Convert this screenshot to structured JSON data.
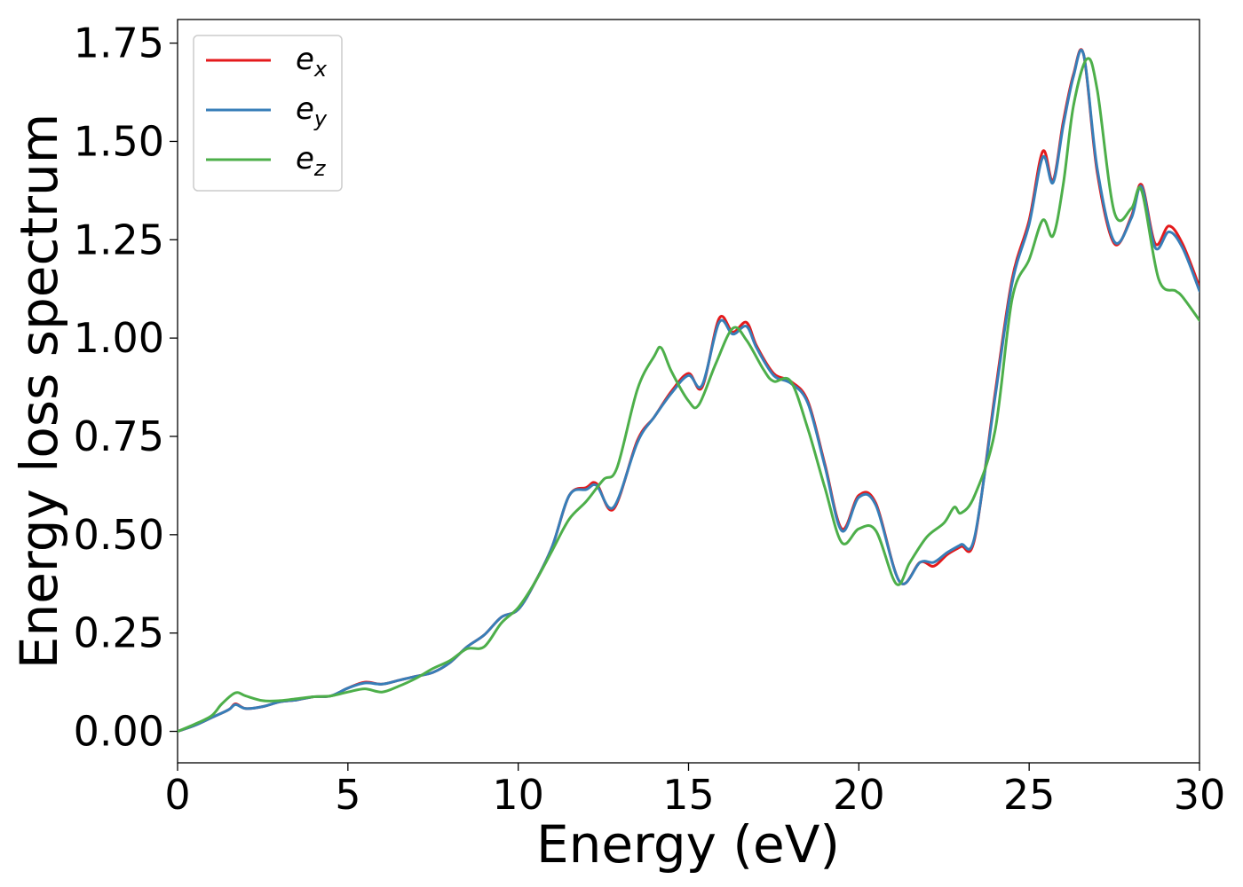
{
  "chart_data": {
    "type": "line",
    "xlabel": "Energy (eV)",
    "ylabel": "Energy loss spectrum",
    "xlim": [
      0,
      30
    ],
    "ylim": [
      -0.08,
      1.81
    ],
    "x_ticks": [
      0,
      5,
      10,
      15,
      20,
      25,
      30
    ],
    "x_tick_labels": [
      "0",
      "5",
      "10",
      "15",
      "20",
      "25",
      "30"
    ],
    "y_ticks": [
      0,
      0.25,
      0.5,
      0.75,
      1.0,
      1.25,
      1.5,
      1.75
    ],
    "y_tick_labels": [
      "0.00",
      "0.25",
      "0.50",
      "0.75",
      "1.00",
      "1.25",
      "1.50",
      "1.75"
    ],
    "grid": false,
    "legend_position": "top-left",
    "series": [
      {
        "name": "e",
        "subscript": "x",
        "color": "#e41a1c",
        "points": [
          [
            0,
            0.0
          ],
          [
            0.5,
            0.015
          ],
          [
            1,
            0.035
          ],
          [
            1.5,
            0.055
          ],
          [
            1.7,
            0.07
          ],
          [
            2,
            0.058
          ],
          [
            2.5,
            0.063
          ],
          [
            3,
            0.075
          ],
          [
            3.5,
            0.08
          ],
          [
            4,
            0.088
          ],
          [
            4.5,
            0.09
          ],
          [
            5,
            0.11
          ],
          [
            5.5,
            0.125
          ],
          [
            6,
            0.12
          ],
          [
            6.5,
            0.13
          ],
          [
            7,
            0.14
          ],
          [
            7.5,
            0.15
          ],
          [
            8,
            0.175
          ],
          [
            8.5,
            0.215
          ],
          [
            9,
            0.245
          ],
          [
            9.5,
            0.29
          ],
          [
            10,
            0.31
          ],
          [
            10.5,
            0.38
          ],
          [
            11,
            0.47
          ],
          [
            11.5,
            0.6
          ],
          [
            12,
            0.62
          ],
          [
            12.3,
            0.63
          ],
          [
            12.8,
            0.565
          ],
          [
            13.5,
            0.74
          ],
          [
            14,
            0.8
          ],
          [
            14.5,
            0.865
          ],
          [
            15,
            0.91
          ],
          [
            15.4,
            0.875
          ],
          [
            15.9,
            1.05
          ],
          [
            16.3,
            1.015
          ],
          [
            16.7,
            1.04
          ],
          [
            17,
            0.98
          ],
          [
            17.5,
            0.91
          ],
          [
            18,
            0.89
          ],
          [
            18.5,
            0.84
          ],
          [
            19,
            0.68
          ],
          [
            19.5,
            0.515
          ],
          [
            20,
            0.6
          ],
          [
            20.5,
            0.58
          ],
          [
            21.2,
            0.38
          ],
          [
            21.8,
            0.43
          ],
          [
            22.2,
            0.42
          ],
          [
            22.6,
            0.45
          ],
          [
            23,
            0.47
          ],
          [
            23.4,
            0.49
          ],
          [
            24,
            0.86
          ],
          [
            24.5,
            1.15
          ],
          [
            25,
            1.3
          ],
          [
            25.4,
            1.475
          ],
          [
            25.7,
            1.4
          ],
          [
            26,
            1.55
          ],
          [
            26.3,
            1.67
          ],
          [
            26.6,
            1.72
          ],
          [
            27,
            1.42
          ],
          [
            27.5,
            1.24
          ],
          [
            28,
            1.31
          ],
          [
            28.3,
            1.39
          ],
          [
            28.7,
            1.24
          ],
          [
            29.1,
            1.285
          ],
          [
            29.5,
            1.24
          ],
          [
            30,
            1.13
          ]
        ]
      },
      {
        "name": "e",
        "subscript": "y",
        "color": "#377eb8",
        "points": [
          [
            0,
            0.0
          ],
          [
            0.5,
            0.015
          ],
          [
            1,
            0.035
          ],
          [
            1.5,
            0.055
          ],
          [
            1.7,
            0.068
          ],
          [
            2,
            0.058
          ],
          [
            2.5,
            0.063
          ],
          [
            3,
            0.075
          ],
          [
            3.5,
            0.08
          ],
          [
            4,
            0.088
          ],
          [
            4.5,
            0.09
          ],
          [
            5,
            0.11
          ],
          [
            5.5,
            0.123
          ],
          [
            6,
            0.12
          ],
          [
            6.5,
            0.13
          ],
          [
            7,
            0.14
          ],
          [
            7.5,
            0.15
          ],
          [
            8,
            0.175
          ],
          [
            8.5,
            0.215
          ],
          [
            9,
            0.245
          ],
          [
            9.5,
            0.29
          ],
          [
            10,
            0.31
          ],
          [
            10.5,
            0.38
          ],
          [
            11,
            0.47
          ],
          [
            11.5,
            0.6
          ],
          [
            12,
            0.615
          ],
          [
            12.3,
            0.625
          ],
          [
            12.8,
            0.57
          ],
          [
            13.5,
            0.735
          ],
          [
            14,
            0.8
          ],
          [
            14.5,
            0.86
          ],
          [
            15,
            0.905
          ],
          [
            15.4,
            0.88
          ],
          [
            15.9,
            1.04
          ],
          [
            16.3,
            1.01
          ],
          [
            16.7,
            1.03
          ],
          [
            17,
            0.975
          ],
          [
            17.5,
            0.905
          ],
          [
            18,
            0.885
          ],
          [
            18.5,
            0.835
          ],
          [
            19,
            0.675
          ],
          [
            19.5,
            0.51
          ],
          [
            20,
            0.595
          ],
          [
            20.5,
            0.575
          ],
          [
            21.2,
            0.38
          ],
          [
            21.8,
            0.43
          ],
          [
            22.2,
            0.43
          ],
          [
            22.6,
            0.455
          ],
          [
            23,
            0.475
          ],
          [
            23.4,
            0.495
          ],
          [
            24,
            0.85
          ],
          [
            24.5,
            1.14
          ],
          [
            25,
            1.29
          ],
          [
            25.4,
            1.46
          ],
          [
            25.7,
            1.395
          ],
          [
            26,
            1.54
          ],
          [
            26.3,
            1.665
          ],
          [
            26.6,
            1.72
          ],
          [
            27,
            1.43
          ],
          [
            27.5,
            1.245
          ],
          [
            28,
            1.305
          ],
          [
            28.3,
            1.385
          ],
          [
            28.7,
            1.23
          ],
          [
            29.1,
            1.27
          ],
          [
            29.5,
            1.23
          ],
          [
            30,
            1.12
          ]
        ]
      },
      {
        "name": "e",
        "subscript": "z",
        "color": "#4daf4a",
        "points": [
          [
            0,
            0.0
          ],
          [
            0.5,
            0.018
          ],
          [
            1,
            0.04
          ],
          [
            1.3,
            0.07
          ],
          [
            1.7,
            0.098
          ],
          [
            2,
            0.09
          ],
          [
            2.5,
            0.078
          ],
          [
            3,
            0.078
          ],
          [
            3.5,
            0.083
          ],
          [
            4,
            0.088
          ],
          [
            4.5,
            0.09
          ],
          [
            5,
            0.1
          ],
          [
            5.5,
            0.108
          ],
          [
            6,
            0.1
          ],
          [
            6.5,
            0.115
          ],
          [
            7,
            0.135
          ],
          [
            7.5,
            0.16
          ],
          [
            8,
            0.18
          ],
          [
            8.5,
            0.21
          ],
          [
            9,
            0.215
          ],
          [
            9.5,
            0.275
          ],
          [
            10,
            0.315
          ],
          [
            10.5,
            0.38
          ],
          [
            11,
            0.46
          ],
          [
            11.5,
            0.54
          ],
          [
            12,
            0.585
          ],
          [
            12.5,
            0.64
          ],
          [
            12.9,
            0.67
          ],
          [
            13.5,
            0.87
          ],
          [
            14,
            0.955
          ],
          [
            14.2,
            0.975
          ],
          [
            14.5,
            0.915
          ],
          [
            15,
            0.84
          ],
          [
            15.3,
            0.83
          ],
          [
            15.8,
            0.935
          ],
          [
            16.3,
            1.025
          ],
          [
            16.7,
            0.995
          ],
          [
            17.2,
            0.92
          ],
          [
            17.5,
            0.89
          ],
          [
            18,
            0.89
          ],
          [
            18.5,
            0.77
          ],
          [
            19,
            0.62
          ],
          [
            19.5,
            0.48
          ],
          [
            20,
            0.515
          ],
          [
            20.5,
            0.51
          ],
          [
            21.1,
            0.375
          ],
          [
            21.5,
            0.43
          ],
          [
            22,
            0.495
          ],
          [
            22.5,
            0.53
          ],
          [
            22.8,
            0.57
          ],
          [
            23,
            0.555
          ],
          [
            23.4,
            0.6
          ],
          [
            24,
            0.765
          ],
          [
            24.5,
            1.1
          ],
          [
            25,
            1.2
          ],
          [
            25.4,
            1.3
          ],
          [
            25.7,
            1.26
          ],
          [
            26,
            1.39
          ],
          [
            26.3,
            1.59
          ],
          [
            26.7,
            1.71
          ],
          [
            27,
            1.63
          ],
          [
            27.5,
            1.32
          ],
          [
            28,
            1.33
          ],
          [
            28.3,
            1.375
          ],
          [
            28.8,
            1.15
          ],
          [
            29.3,
            1.12
          ],
          [
            29.5,
            1.105
          ],
          [
            30,
            1.045
          ]
        ]
      }
    ]
  }
}
